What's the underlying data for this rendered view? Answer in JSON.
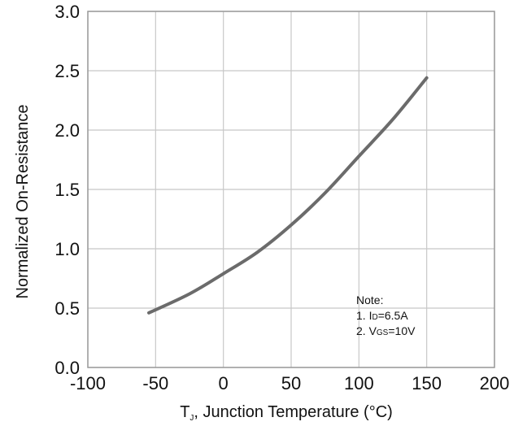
{
  "chart_data": {
    "type": "line",
    "xlabel": "T",
    "xlabel_sub": "J",
    "xlabel_rest": ", Junction Temperature (°C)",
    "ylabel": "Normalized On-Resistance",
    "xlim": [
      -100,
      200
    ],
    "ylim": [
      0.0,
      3.0
    ],
    "x_ticks": [
      -100,
      -50,
      0,
      50,
      100,
      150,
      200
    ],
    "x_tick_labels": [
      "-100",
      "-50",
      "0",
      "50",
      "100",
      "150",
      "200"
    ],
    "y_ticks": [
      0.0,
      0.5,
      1.0,
      1.5,
      2.0,
      2.5,
      3.0
    ],
    "y_tick_labels": [
      "0.0",
      "0.5",
      "1.0",
      "1.5",
      "2.0",
      "2.5",
      "3.0"
    ],
    "grid": true,
    "series": [
      {
        "x": [
          -55,
          -25,
          0,
          25,
          50,
          75,
          100,
          125,
          150
        ],
        "y": [
          0.46,
          0.62,
          0.79,
          0.97,
          1.2,
          1.47,
          1.78,
          2.09,
          2.44
        ]
      }
    ],
    "line_color": "#6b6b6b",
    "grid_color": "#c8c8c8",
    "annotation": {
      "title": "Note:",
      "line1_prefix": "1. I",
      "line1_sub": "D",
      "line1_suffix": "=6.5A",
      "line2_prefix": "2. V",
      "line2_sub": "GS",
      "line2_suffix": "=10V"
    }
  }
}
